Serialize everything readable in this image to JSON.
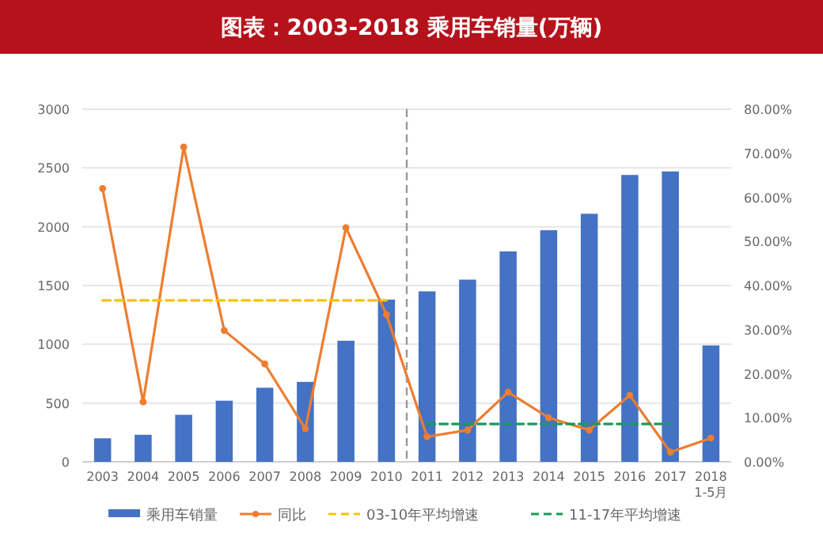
{
  "chart_data": {
    "type": "bar",
    "title": "图表：2003-2018 乘用车销量(万辆)",
    "categories": [
      "2003",
      "2004",
      "2005",
      "2006",
      "2007",
      "2008",
      "2009",
      "2010",
      "2011",
      "2012",
      "2013",
      "2014",
      "2015",
      "2016",
      "2017",
      "2018\n1-5月"
    ],
    "series": [
      {
        "name": "乘用车销量",
        "color": "#4472c4",
        "values": [
          200,
          230,
          400,
          520,
          630,
          680,
          1030,
          1380,
          1450,
          1550,
          1790,
          1970,
          2110,
          2440,
          2470,
          990
        ]
      },
      {
        "name": "同比",
        "type": "line",
        "axis": "y2",
        "color": "#ed7d31",
        "marker": "circle",
        "line_style": "solid",
        "values": [
          0.62,
          0.136,
          0.714,
          0.298,
          0.222,
          0.075,
          0.531,
          0.334,
          0.057,
          0.072,
          0.158,
          0.1,
          0.072,
          0.151,
          0.022,
          0.054
        ]
      },
      {
        "name": "03-10年平均增速",
        "type": "line",
        "axis": "y2",
        "color": "#f5c400",
        "marker": "none",
        "line_style": "dashed",
        "values": [
          0.366,
          0.366,
          0.366,
          0.366,
          0.366,
          0.366,
          0.366,
          0.366,
          null,
          null,
          null,
          null,
          null,
          null,
          null,
          null
        ]
      },
      {
        "name": "11-17年平均增速",
        "type": "line",
        "axis": "y2",
        "color": "#1a9a5a",
        "marker": "none",
        "line_style": "dashed",
        "values": [
          null,
          null,
          null,
          null,
          null,
          null,
          null,
          null,
          0.086,
          0.086,
          0.086,
          0.086,
          0.086,
          0.086,
          0.086,
          null
        ]
      }
    ],
    "ylim": [
      0,
      3000
    ],
    "yticks": [
      0,
      500,
      1000,
      1500,
      2000,
      2500,
      3000
    ],
    "y2lim": [
      0,
      0.8
    ],
    "y2ticks": [
      {
        "value": 0,
        "label": "0.00%"
      },
      {
        "value": 0.1,
        "label": "10.00%"
      },
      {
        "value": 0.2,
        "label": "20.00%"
      },
      {
        "value": 0.3,
        "label": "30.00%"
      },
      {
        "value": 0.4,
        "label": "40.00%"
      },
      {
        "value": 0.5,
        "label": "50.00%"
      },
      {
        "value": 0.6,
        "label": "60.00%"
      },
      {
        "value": 0.7,
        "label": "70.00%"
      },
      {
        "value": 0.8,
        "label": "80.00%"
      }
    ],
    "ref_lines": [
      {
        "axis": "x",
        "value": "2011",
        "color": "#999999",
        "line_style": "dashed"
      }
    ],
    "grid": "y",
    "legend": "bottom"
  }
}
